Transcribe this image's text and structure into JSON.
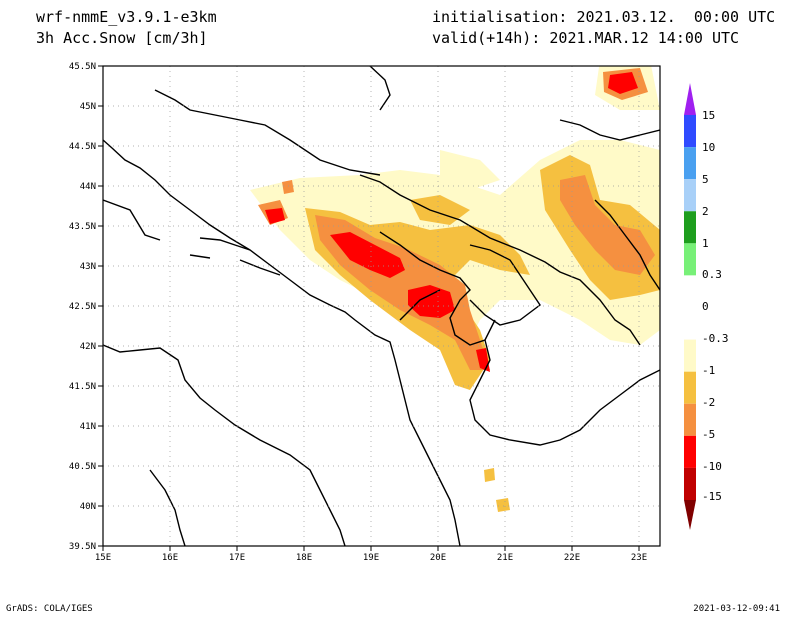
{
  "header": {
    "model": "wrf-nmmE_v3.9.1-e3km",
    "variable": "3h Acc.Snow [cm/3h]",
    "init": "initialisation: 2021.03.12.  00:00 UTC",
    "valid": "valid(+14h): 2021.MAR.12 14:00 UTC"
  },
  "map": {
    "lon_ticks": [
      "15E",
      "16E",
      "17E",
      "18E",
      "19E",
      "20E",
      "21E",
      "22E",
      "23E"
    ],
    "lat_ticks": [
      "45.5N",
      "45N",
      "44.5N",
      "44N",
      "43.5N",
      "43N",
      "42.5N",
      "42N",
      "41.5N",
      "41N",
      "40.5N",
      "40N",
      "39.5N"
    ],
    "grid": "dotted"
  },
  "colorbar": {
    "top_arrow_color": "#a020f0",
    "bottom_arrow_color": "#800000",
    "boxes": [
      {
        "color": "#a020f0"
      },
      {
        "color": "#2f4bff"
      },
      {
        "color": "#4aa0f0"
      },
      {
        "color": "#a8d0f8"
      },
      {
        "color": "#1e9e1e"
      },
      {
        "color": "#78f078"
      },
      {
        "color": "#ffffff"
      },
      {
        "color": "#ffffff"
      },
      {
        "color": "#fffac8"
      },
      {
        "color": "#f5c040"
      },
      {
        "color": "#f59040"
      },
      {
        "color": "#ff0000"
      },
      {
        "color": "#c00000"
      },
      {
        "color": "#800000"
      }
    ],
    "labels": [
      "15",
      "10",
      "5",
      "2",
      "1",
      "0.3",
      "0",
      "-0.3",
      "-1",
      "-2",
      "-5",
      "-10",
      "-15"
    ]
  },
  "footer": {
    "credit": "GrADS: COLA/IGES",
    "timestamp": "2021-03-12-09:41"
  }
}
